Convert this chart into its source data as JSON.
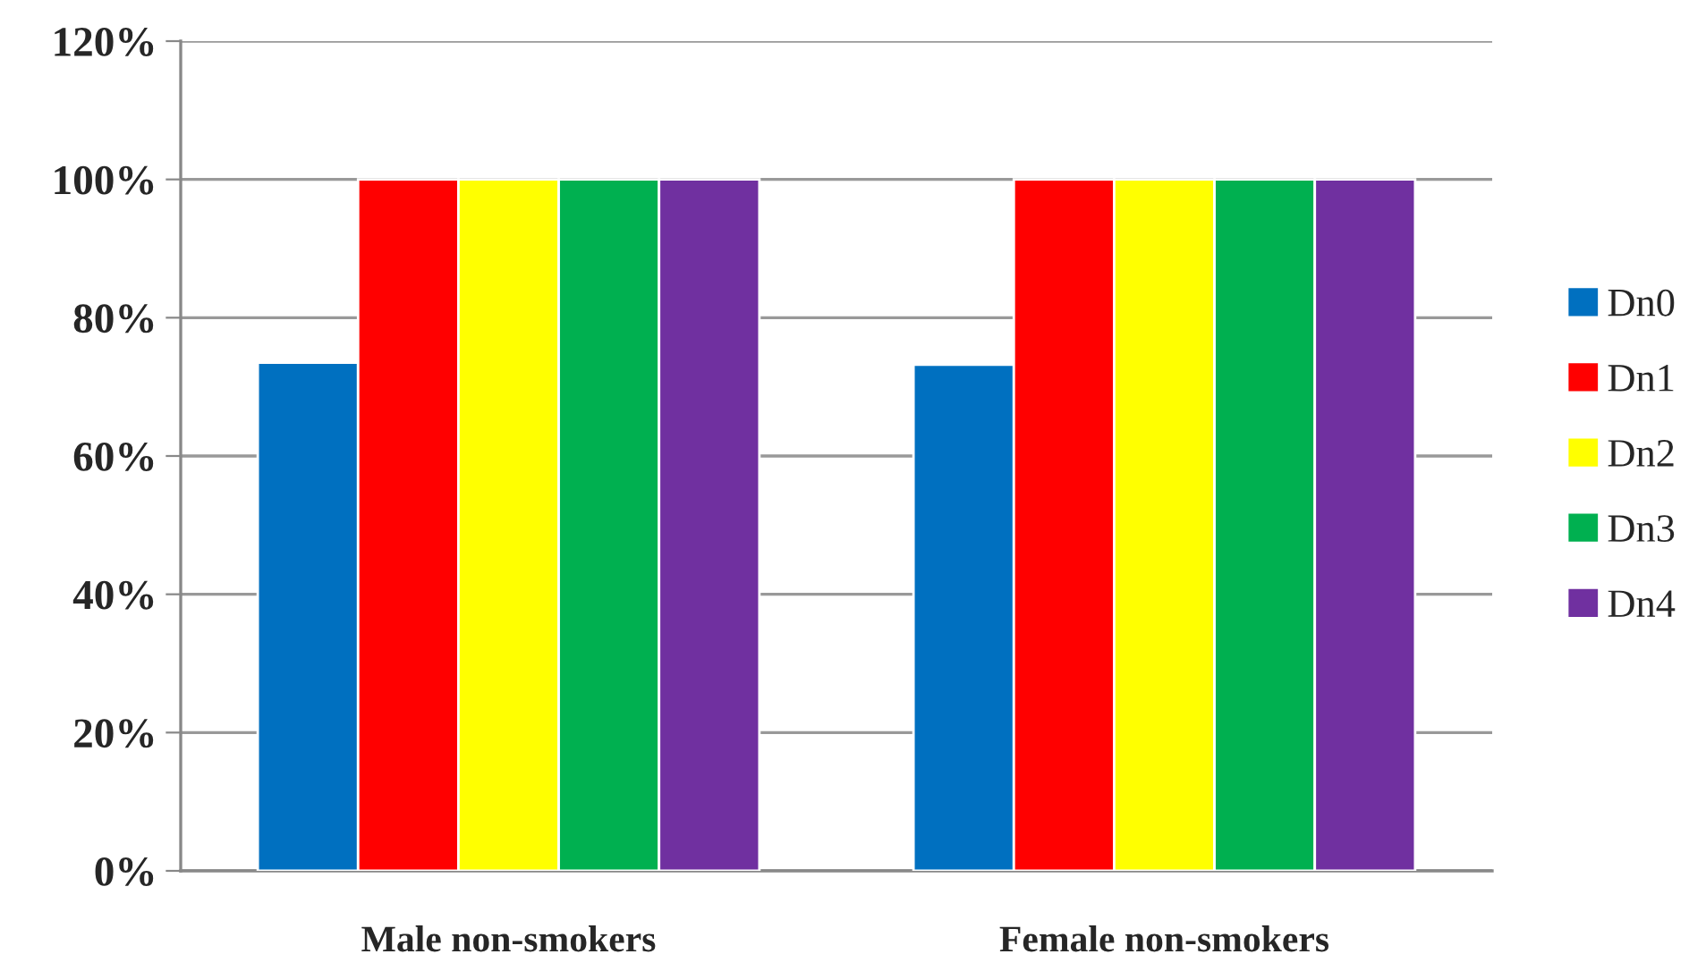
{
  "chart_data": {
    "type": "bar",
    "categories": [
      "Male non-smokers",
      "Female non-smokers"
    ],
    "series": [
      {
        "name": "Dn0",
        "color": "#0070c0",
        "values": [
          73.5,
          73.2
        ]
      },
      {
        "name": "Dn1",
        "color": "#ff0000",
        "values": [
          100,
          100
        ]
      },
      {
        "name": "Dn2",
        "color": "#ffff00",
        "values": [
          100,
          100
        ]
      },
      {
        "name": "Dn3",
        "color": "#00b050",
        "values": [
          100,
          100
        ]
      },
      {
        "name": "Dn4",
        "color": "#7030a0",
        "values": [
          100,
          100
        ]
      }
    ],
    "ylim": [
      0,
      120
    ],
    "yticks": [
      {
        "value": 0,
        "label": "0%"
      },
      {
        "value": 20,
        "label": "20%"
      },
      {
        "value": 40,
        "label": "40%"
      },
      {
        "value": 60,
        "label": "60%"
      },
      {
        "value": 80,
        "label": "80%"
      },
      {
        "value": 100,
        "label": "100%"
      },
      {
        "value": 120,
        "label": "120%"
      }
    ],
    "grid": "y",
    "legend": "right"
  }
}
